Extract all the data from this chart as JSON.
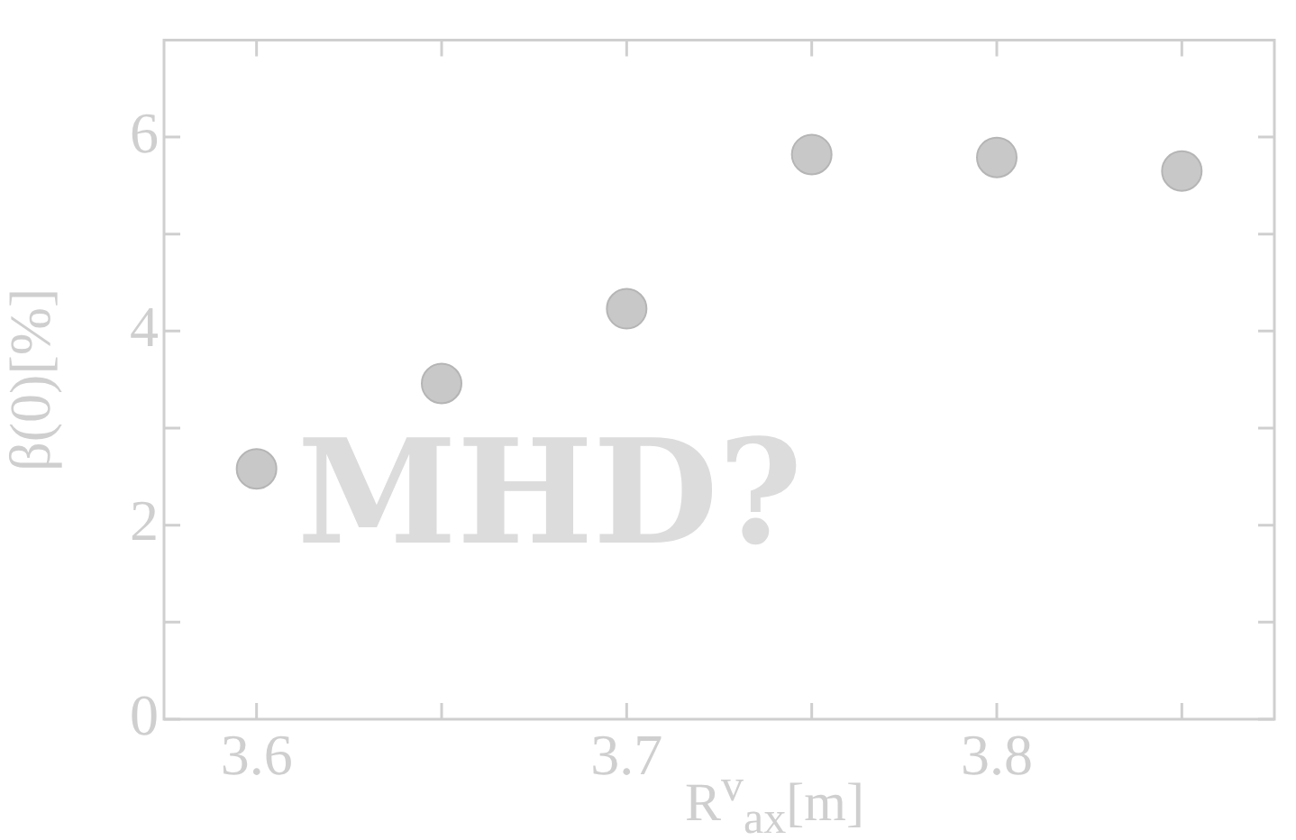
{
  "chart_data": {
    "type": "scatter",
    "xlabel": "R$^{v}$$_{ax}$[m]",
    "ylabel": "β(0)[%]",
    "x": [
      3.6,
      3.65,
      3.7,
      3.75,
      3.8,
      3.85
    ],
    "series": [
      {
        "color": "#c8c8c8",
        "values": [
          2.58,
          3.46,
          4.23,
          5.82,
          5.79,
          5.65
        ]
      }
    ],
    "xlim": [
      3.575,
      3.875
    ],
    "xticks": [
      3.6,
      {
        "value": 3.65,
        "label": null
      },
      3.7,
      {
        "value": 3.75,
        "label": null
      },
      3.8,
      {
        "value": 3.85,
        "label": null
      }
    ],
    "ylim": [
      0,
      7
    ],
    "yticks": [
      0,
      {
        "value": 1,
        "label": null
      },
      2,
      {
        "value": 3,
        "label": null
      },
      4,
      {
        "value": 5,
        "label": null
      },
      6
    ],
    "annotations": [
      "MHD?"
    ],
    "grid": false,
    "legend": false,
    "marker": "circle"
  }
}
